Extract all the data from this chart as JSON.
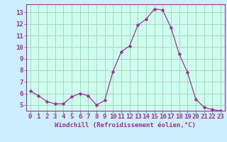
{
  "x": [
    0,
    1,
    2,
    3,
    4,
    5,
    6,
    7,
    8,
    9,
    10,
    11,
    12,
    13,
    14,
    15,
    16,
    17,
    18,
    19,
    20,
    21,
    22,
    23
  ],
  "y": [
    6.2,
    5.8,
    5.3,
    5.1,
    5.1,
    5.7,
    6.0,
    5.8,
    5.0,
    5.4,
    7.9,
    9.6,
    10.1,
    11.9,
    12.4,
    13.3,
    13.2,
    11.7,
    9.4,
    7.8,
    5.5,
    4.8,
    4.6,
    4.5
  ],
  "line_color": "#993399",
  "marker_color": "#993399",
  "bg_color": "#cceeff",
  "plot_bg_color": "#ccffee",
  "grid_color": "#aaccbb",
  "spine_color": "#993399",
  "xlabel": "Windchill (Refroidissement éolien,°C)",
  "ylim": [
    4.5,
    13.7
  ],
  "xlim": [
    -0.5,
    23.5
  ],
  "yticks": [
    5,
    6,
    7,
    8,
    9,
    10,
    11,
    12,
    13
  ],
  "xticks": [
    0,
    1,
    2,
    3,
    4,
    5,
    6,
    7,
    8,
    9,
    10,
    11,
    12,
    13,
    14,
    15,
    16,
    17,
    18,
    19,
    20,
    21,
    22,
    23
  ],
  "font_color": "#993399",
  "xlabel_fontsize": 6.5,
  "tick_fontsize": 6.5
}
